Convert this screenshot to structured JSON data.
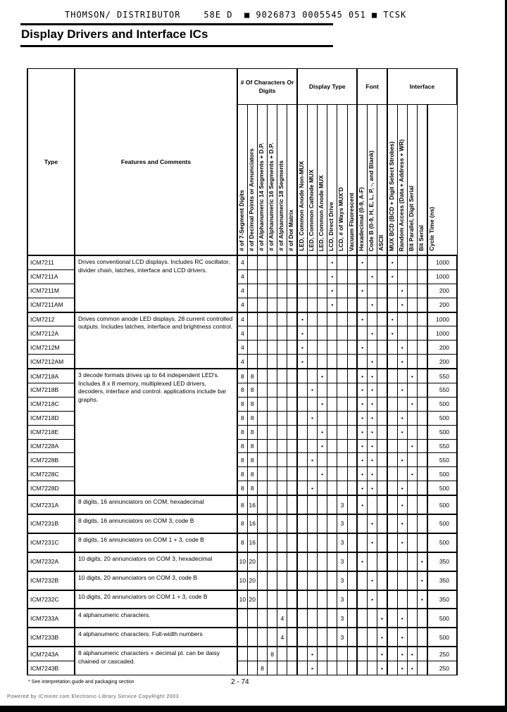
{
  "header": {
    "scan_line": "THOMSON/ DISTRIBUTOR    58E D  ■ 9026873 0005545 051 ■ TCSK",
    "title": "Display Drivers and Interface ICs"
  },
  "table": {
    "col_type": "Type",
    "col_features": "Features and Comments",
    "groups": [
      "# Of Characters Or Digits",
      "Display Type",
      "Font",
      "Interface"
    ],
    "columns": [
      "# of 7-Segment Digits",
      "# of Decimal Points or Annunciators",
      "# of Alphanumeric 14 Segments + D.P.",
      "# of Alphanumeric 16 Segments + D.P.",
      "# of Alphanumeric 18 Segments",
      "# of Dot Matrix",
      "LED, Common Anode Non-MUX",
      "LED, Common Cathode MUX",
      "LED, Common Anode MUX",
      "LCD, Direct Drive",
      "LCD, # of Ways MUX'D",
      "Vacuum Fluorescent",
      "Hexadecimal (0-9, A-F)",
      "Code B (0-9, H, E, L, P, -, and Blank)",
      "ASCII",
      "MUX BCD (BCD + Digit Select Strobes)",
      "Random Access (Data + Address + WR)",
      "Bit Parallel, Digit Serial",
      "Bit Serial",
      "Cycle Time (ns)"
    ],
    "rows": [
      {
        "type": "ICM7211",
        "features": "Drives conventional LCD displays. Includes RC oscillator, divider chain, latches, interface and LCD drivers.",
        "span": 4,
        "cells": [
          "4",
          "",
          "",
          "",
          "",
          "",
          "",
          "",
          "",
          "•",
          "",
          "",
          "•",
          "",
          "",
          "•",
          "",
          "",
          ""
        ],
        "cycle": "1000"
      },
      {
        "type": "ICM7211A",
        "cells": [
          "4",
          "",
          "",
          "",
          "",
          "",
          "",
          "",
          "",
          "•",
          "",
          "",
          "",
          "•",
          "",
          "•",
          "",
          "",
          ""
        ],
        "cycle": "1000"
      },
      {
        "type": "ICM7211M",
        "cells": [
          "4",
          "",
          "",
          "",
          "",
          "",
          "",
          "",
          "",
          "•",
          "",
          "",
          "•",
          "",
          "",
          "",
          "•",
          "",
          ""
        ],
        "cycle": "200"
      },
      {
        "type": "ICM7211AM",
        "cells": [
          "4",
          "",
          "",
          "",
          "",
          "",
          "",
          "",
          "",
          "•",
          "",
          "",
          "",
          "•",
          "",
          "",
          "•",
          "",
          ""
        ],
        "cycle": "200"
      },
      {
        "type": "ICM7212",
        "features": "Drives common anode LED displays. 28 current controlled outputs. Includes latches, interface and brightness control.",
        "span": 4,
        "cells": [
          "4",
          "",
          "",
          "",
          "",
          "",
          "•",
          "",
          "",
          "",
          "",
          "",
          "•",
          "",
          "",
          "•",
          "",
          "",
          ""
        ],
        "cycle": "1000"
      },
      {
        "type": "ICM7212A",
        "cells": [
          "4",
          "",
          "",
          "",
          "",
          "",
          "•",
          "",
          "",
          "",
          "",
          "",
          "",
          "•",
          "",
          "•",
          "",
          "",
          ""
        ],
        "cycle": "1000"
      },
      {
        "type": "ICM7212M",
        "cells": [
          "4",
          "",
          "",
          "",
          "",
          "",
          "•",
          "",
          "",
          "",
          "",
          "",
          "•",
          "",
          "",
          "",
          "•",
          "",
          ""
        ],
        "cycle": "200"
      },
      {
        "type": "ICM7212AM",
        "cells": [
          "4",
          "",
          "",
          "",
          "",
          "",
          "•",
          "",
          "",
          "",
          "",
          "",
          "",
          "•",
          "",
          "",
          "•",
          "",
          ""
        ],
        "cycle": "200"
      },
      {
        "type": "ICM7218A",
        "features": "3 decode formats drives up to 64 independent LED's. Includes 8 x 8 memory, multiplexed LED drivers, decoders, interface and control. applications include bar graphs.",
        "span": 9,
        "cells": [
          "8",
          "8",
          "",
          "",
          "",
          "",
          "",
          "",
          "•",
          "",
          "",
          "",
          "•",
          "•",
          "",
          "",
          "",
          "•",
          ""
        ],
        "cycle": "550"
      },
      {
        "type": "ICM7218B",
        "cells": [
          "8",
          "8",
          "",
          "",
          "",
          "",
          "",
          "•",
          "",
          "",
          "",
          "",
          "•",
          "•",
          "",
          "",
          "•",
          "",
          ""
        ],
        "cycle": "550"
      },
      {
        "type": "ICM7218C",
        "cells": [
          "8",
          "8",
          "",
          "",
          "",
          "",
          "",
          "",
          "•",
          "",
          "",
          "",
          "•",
          "•",
          "",
          "",
          "",
          "•",
          ""
        ],
        "cycle": "500"
      },
      {
        "type": "ICM7218D",
        "cells": [
          "8",
          "8",
          "",
          "",
          "",
          "",
          "",
          "•",
          "",
          "",
          "",
          "",
          "•",
          "•",
          "",
          "",
          "•",
          "",
          ""
        ],
        "cycle": "500"
      },
      {
        "type": "ICM7218E",
        "cells": [
          "8",
          "8",
          "",
          "",
          "",
          "",
          "",
          "",
          "•",
          "",
          "",
          "",
          "•",
          "•",
          "",
          "",
          "•",
          "",
          ""
        ],
        "cycle": "500"
      },
      {
        "type": "ICM7228A",
        "cells": [
          "8",
          "8",
          "",
          "",
          "",
          "",
          "",
          "",
          "•",
          "",
          "",
          "",
          "•",
          "•",
          "",
          "",
          "",
          "•",
          ""
        ],
        "cycle": "550"
      },
      {
        "type": "ICM7228B",
        "cells": [
          "8",
          "8",
          "",
          "",
          "",
          "",
          "",
          "•",
          "",
          "",
          "",
          "",
          "•",
          "•",
          "",
          "",
          "•",
          "",
          ""
        ],
        "cycle": "550"
      },
      {
        "type": "ICM7228C",
        "cells": [
          "8",
          "8",
          "",
          "",
          "",
          "",
          "",
          "",
          "•",
          "",
          "",
          "",
          "•",
          "•",
          "",
          "",
          "",
          "•",
          ""
        ],
        "cycle": "500"
      },
      {
        "type": "ICM7228D",
        "cells": [
          "8",
          "8",
          "",
          "",
          "",
          "",
          "",
          "•",
          "",
          "",
          "",
          "",
          "•",
          "•",
          "",
          "",
          "•",
          "",
          ""
        ],
        "cycle": "500"
      },
      {
        "type": "ICM7231A",
        "features": "8 digits, 16 annunciators on COM, hexadecimal",
        "span": 1,
        "cells": [
          "8",
          "16",
          "",
          "",
          "",
          "",
          "",
          "",
          "",
          "",
          "3",
          "",
          "•",
          "",
          "",
          "",
          "•",
          "",
          ""
        ],
        "cycle": "500"
      },
      {
        "type": "ICM7231B",
        "features": "8 digits, 16 annunciators on COM 3, code B",
        "span": 1,
        "cells": [
          "8",
          "16",
          "",
          "",
          "",
          "",
          "",
          "",
          "",
          "",
          "3",
          "",
          "",
          "•",
          "",
          "",
          "•",
          "",
          ""
        ],
        "cycle": "500"
      },
      {
        "type": "ICM7231C",
        "features": "8 digits, 16 annunciators on COM 1 + 3, code B",
        "span": 1,
        "cells": [
          "8",
          "16",
          "",
          "",
          "",
          "",
          "",
          "",
          "",
          "",
          "3",
          "",
          "",
          "•",
          "",
          "",
          "•",
          "",
          ""
        ],
        "cycle": "500"
      },
      {
        "type": "ICM7232A",
        "features": "10 digits, 20 annunciators on COM 3, hexadecimal",
        "span": 1,
        "cells": [
          "10",
          "20",
          "",
          "",
          "",
          "",
          "",
          "",
          "",
          "",
          "3",
          "",
          "•",
          "",
          "",
          "",
          "",
          "",
          "•"
        ],
        "cycle": "350"
      },
      {
        "type": "ICM7232B",
        "features": "10 digits, 20 annunciators on COM 3, code B",
        "span": 1,
        "cells": [
          "10",
          "20",
          "",
          "",
          "",
          "",
          "",
          "",
          "",
          "",
          "3",
          "",
          "",
          "•",
          "",
          "",
          "",
          "",
          "•"
        ],
        "cycle": "350"
      },
      {
        "type": "ICM7232C",
        "features": "10 digits, 20 annunciators on COM 1 + 3, code B",
        "span": 1,
        "cells": [
          "10",
          "20",
          "",
          "",
          "",
          "",
          "",
          "",
          "",
          "",
          "3",
          "",
          "",
          "•",
          "",
          "",
          "",
          "",
          "•"
        ],
        "cycle": "350"
      },
      {
        "type": "ICM7233A",
        "features": "4 alphanumeric characters.",
        "span": 1,
        "cells": [
          "",
          "",
          "",
          "",
          "4",
          "",
          "",
          "",
          "",
          "",
          "3",
          "",
          "",
          "",
          "•",
          "",
          "•",
          "",
          ""
        ],
        "cycle": "500"
      },
      {
        "type": "ICM7233B",
        "features": "4 alphanumeric characters. Full-width numbers",
        "span": 1,
        "cells": [
          "",
          "",
          "",
          "",
          "4",
          "",
          "",
          "",
          "",
          "",
          "3",
          "",
          "",
          "",
          "•",
          "",
          "•",
          "",
          ""
        ],
        "cycle": "500"
      },
      {
        "type": "ICM7243A",
        "features": "8 alphanumeric characters + decimal pt. can be daisy chained or cascaded.",
        "span": 2,
        "cells": [
          "",
          "",
          "",
          "8",
          "",
          "",
          "",
          "•",
          "",
          "",
          "",
          "",
          "",
          "",
          "•",
          "",
          "•",
          "•",
          ""
        ],
        "cycle": "250"
      },
      {
        "type": "ICM7243B",
        "cells": [
          "",
          "",
          "8",
          "",
          "",
          "",
          "",
          "•",
          "",
          "",
          "",
          "",
          "",
          "",
          "•",
          "",
          "•",
          "•",
          ""
        ],
        "cycle": "250"
      }
    ]
  },
  "footnote": "* See interpretation guide and packaging section",
  "page_number": "2 - 74",
  "credit": "Powered by ICminer.com Electronic-Library Service CopyRight 2003"
}
